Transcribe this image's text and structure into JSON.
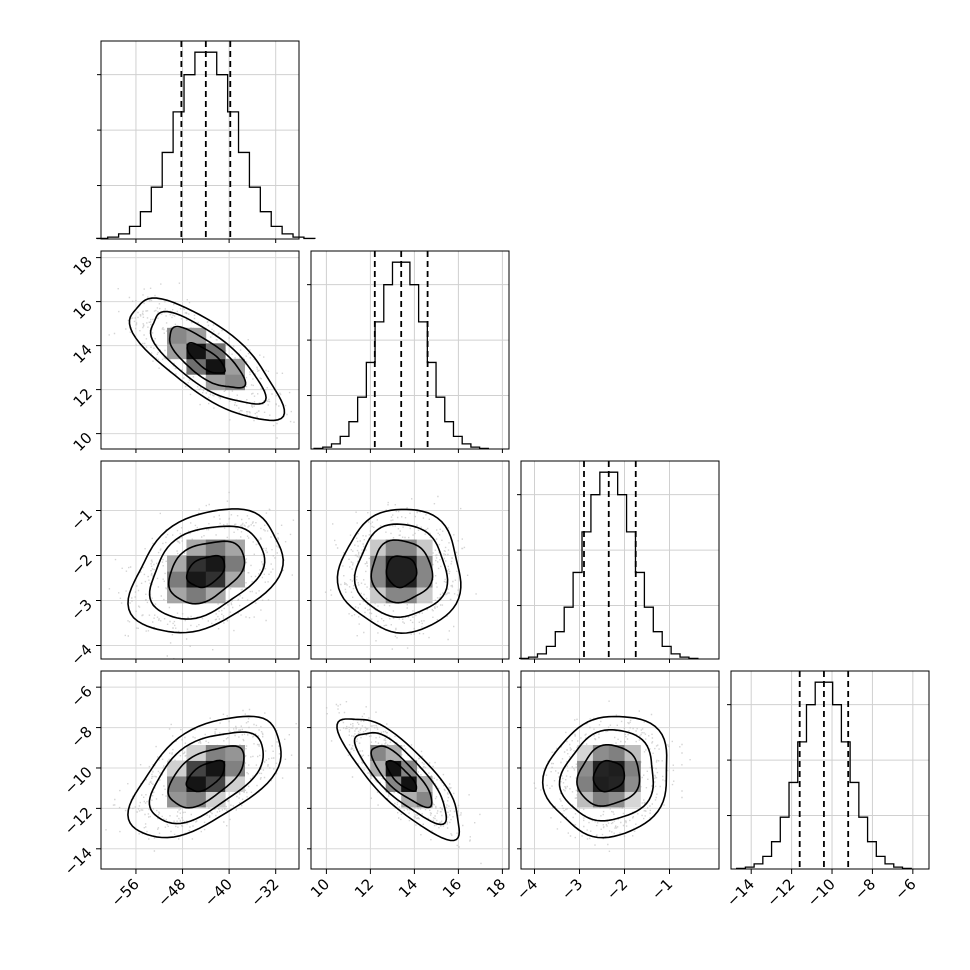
{
  "chart_data": {
    "type": "corner",
    "parameters": [
      {
        "range": [
          -62,
          -28
        ],
        "xticks": [
          "−56",
          "−48",
          "−40",
          "−32"
        ],
        "xtick_values": [
          -56,
          -48,
          -40,
          -32
        ],
        "yticks": [],
        "ytick_values": [],
        "mean": -44.0,
        "sd": 5.2,
        "quantiles": [
          -48.2,
          -44.0,
          -39.8
        ]
      },
      {
        "range": [
          9.3,
          18.3
        ],
        "xticks": [
          "10",
          "12",
          "14",
          "16",
          "18"
        ],
        "xtick_values": [
          10,
          12,
          14,
          16,
          18
        ],
        "yticks": [
          "10",
          "12",
          "14",
          "16",
          "18"
        ],
        "ytick_values": [
          10,
          12,
          14,
          16,
          18
        ],
        "mean": 13.4,
        "sd": 1.1,
        "quantiles": [
          12.2,
          13.4,
          14.6
        ]
      },
      {
        "range": [
          -4.3,
          0.1
        ],
        "xticks": [
          "−4",
          "−3",
          "−2",
          "−1"
        ],
        "xtick_values": [
          -4,
          -3,
          -2,
          -1
        ],
        "yticks": [
          "−1",
          "−2",
          "−3",
          "−4"
        ],
        "ytick_values": [
          -1,
          -2,
          -3,
          -4
        ],
        "mean": -2.35,
        "sd": 0.55,
        "quantiles": [
          -2.9,
          -2.35,
          -1.75
        ]
      },
      {
        "range": [
          -15,
          -5.2
        ],
        "xticks": [
          "−14",
          "−12",
          "−10",
          "−8",
          "−6"
        ],
        "xtick_values": [
          -14,
          -12,
          -10,
          -8,
          -6
        ],
        "yticks": [
          "−6",
          "−8",
          "−10",
          "−12",
          "−14"
        ],
        "ytick_values": [
          -6,
          -8,
          -10,
          -12,
          -14
        ],
        "mean": -10.4,
        "sd": 1.2,
        "quantiles": [
          -11.6,
          -10.4,
          -9.2
        ]
      }
    ],
    "correlations": [
      {
        "pair": [
          0,
          1
        ],
        "rho": -0.75
      },
      {
        "pair": [
          0,
          2
        ],
        "rho": 0.35
      },
      {
        "pair": [
          1,
          2
        ],
        "rho": 0.0
      },
      {
        "pair": [
          0,
          3
        ],
        "rho": 0.55
      },
      {
        "pair": [
          1,
          3
        ],
        "rho": -0.8
      },
      {
        "pair": [
          2,
          3
        ],
        "rho": 0.1
      }
    ],
    "contour_levels_sigma": [
      0.5,
      1.0,
      1.5,
      2.0
    ],
    "histogram_bins": 20,
    "grid": true,
    "quantile_line_style": "dashed"
  }
}
